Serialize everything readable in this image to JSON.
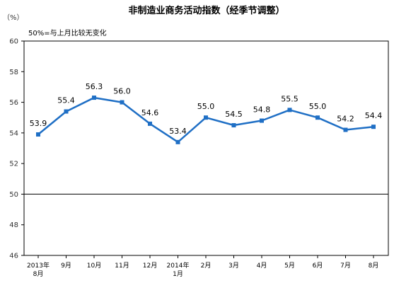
{
  "chart_data": {
    "type": "line",
    "title": "非制造业商务活动指数（经季节调整）",
    "unit_label": "（%）",
    "annotation": "50%=与上月比较无变化",
    "categories": [
      "2013年8月",
      "9月",
      "10月",
      "11月",
      "12月",
      "2014年1月",
      "2月",
      "3月",
      "4月",
      "5月",
      "6月",
      "7月",
      "8月"
    ],
    "x_tick_lines": [
      [
        "2013年",
        "8月"
      ],
      [
        "9月"
      ],
      [
        "10月"
      ],
      [
        "11月"
      ],
      [
        "12月"
      ],
      [
        "2014年",
        "1月"
      ],
      [
        "2月"
      ],
      [
        "3月"
      ],
      [
        "4月"
      ],
      [
        "5月"
      ],
      [
        "6月"
      ],
      [
        "7月"
      ],
      [
        "8月"
      ]
    ],
    "series": [
      {
        "values": [
          53.9,
          55.4,
          56.3,
          56.0,
          54.6,
          53.4,
          55.0,
          54.5,
          54.8,
          55.5,
          55.0,
          54.2,
          54.4
        ],
        "labels": [
          "53.9",
          "55.4",
          "56.3",
          "56.0",
          "54.6",
          "53.4",
          "55.0",
          "54.5",
          "54.8",
          "55.5",
          "55.0",
          "54.2",
          "54.4"
        ],
        "color": "#1f6fc5"
      }
    ],
    "ylim": [
      46,
      60
    ],
    "yticks": [
      46,
      48,
      50,
      52,
      54,
      56,
      58,
      60
    ],
    "reference_line": 50,
    "grid": false,
    "legend": "none"
  }
}
